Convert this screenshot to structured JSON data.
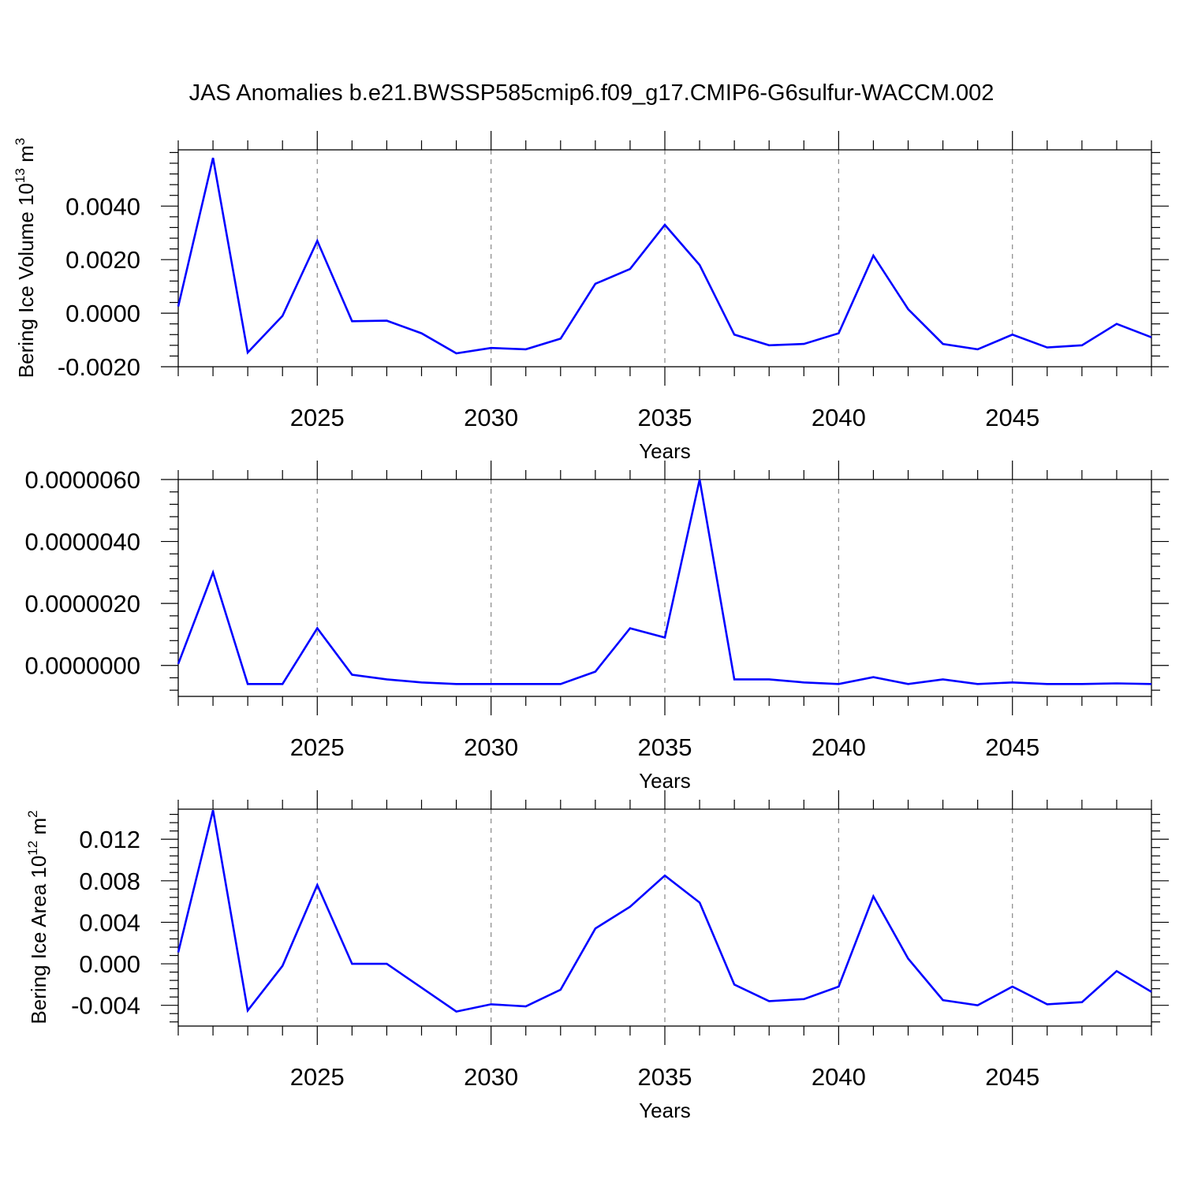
{
  "title": "JAS Anomalies b.e21.BWSSP585cmip6.f09_g17.CMIP6-G6sulfur-WACCM.002",
  "chart_data": [
    {
      "type": "line",
      "xlabel": "Years",
      "ylabel_main": "Bering Ice Volume 10",
      "ylabel_exp": "13",
      "ylabel_unit": " m",
      "ylabel_unit_exp": "3",
      "xlim": [
        2021,
        2049
      ],
      "ylim": [
        -0.002,
        0.0061
      ],
      "xticks": [
        "2025",
        "2030",
        "2035",
        "2040",
        "2045"
      ],
      "yticks": [
        "0.0040",
        "0.0020",
        "0.0000",
        "-0.0020"
      ],
      "ytick_values": [
        0.004,
        0.002,
        0.0,
        -0.002
      ],
      "color": "#0000ff",
      "x": [
        2021,
        2022,
        2023,
        2024,
        2025,
        2026,
        2027,
        2028,
        2029,
        2030,
        2031,
        2032,
        2033,
        2034,
        2035,
        2036,
        2037,
        2038,
        2039,
        2040,
        2041,
        2042,
        2043,
        2044,
        2045,
        2046,
        2047,
        2048,
        2049
      ],
      "values": [
        0.00025,
        0.0058,
        -0.00147,
        -0.0001,
        0.0027,
        -0.0003,
        -0.00028,
        -0.00075,
        -0.0015,
        -0.0013,
        -0.00135,
        -0.00095,
        0.0011,
        0.00165,
        0.0033,
        0.0018,
        -0.0008,
        -0.0012,
        -0.00115,
        -0.00075,
        0.00215,
        0.00015,
        -0.00115,
        -0.00135,
        -0.0008,
        -0.00128,
        -0.0012,
        -0.0004,
        -0.0009
      ]
    },
    {
      "type": "line",
      "xlabel": "Years",
      "xlim": [
        2021,
        2049
      ],
      "ylim": [
        -1e-06,
        6e-06
      ],
      "xticks": [
        "2025",
        "2030",
        "2035",
        "2040",
        "2045"
      ],
      "yticks": [
        "0.0000060",
        "0.0000040",
        "0.0000020",
        "0.0000000"
      ],
      "ytick_values": [
        6e-06,
        4e-06,
        2e-06,
        0.0
      ],
      "color": "#0000ff",
      "x": [
        2021,
        2022,
        2023,
        2024,
        2025,
        2026,
        2027,
        2028,
        2029,
        2030,
        2031,
        2032,
        2033,
        2034,
        2035,
        2036,
        2037,
        2038,
        2039,
        2040,
        2041,
        2042,
        2043,
        2044,
        2045,
        2046,
        2047,
        2048,
        2049
      ],
      "values": [
        5e-08,
        3e-06,
        -6e-07,
        -6e-07,
        1.2e-06,
        -3e-07,
        -4.5e-07,
        -5.5e-07,
        -6e-07,
        -6e-07,
        -6e-07,
        -6e-07,
        -2e-07,
        1.2e-06,
        9e-07,
        6e-06,
        -4.5e-07,
        -4.5e-07,
        -5.5e-07,
        -6e-07,
        -3.8e-07,
        -6e-07,
        -4.5e-07,
        -6e-07,
        -5.5e-07,
        -6e-07,
        -6e-07,
        -5.8e-07,
        -6e-07
      ]
    },
    {
      "type": "line",
      "xlabel": "Years",
      "ylabel_main": "Bering Ice Area 10",
      "ylabel_exp": "12",
      "ylabel_unit": " m",
      "ylabel_unit_exp": "2",
      "xlim": [
        2021,
        2049
      ],
      "ylim": [
        -0.006,
        0.0149
      ],
      "xticks": [
        "2025",
        "2030",
        "2035",
        "2040",
        "2045"
      ],
      "yticks": [
        "0.012",
        "0.008",
        "0.004",
        "0.000",
        "-0.004"
      ],
      "ytick_values": [
        0.012,
        0.008,
        0.004,
        0.0,
        -0.004
      ],
      "color": "#0000ff",
      "x": [
        2021,
        2022,
        2023,
        2024,
        2025,
        2026,
        2027,
        2028,
        2029,
        2030,
        2031,
        2032,
        2033,
        2034,
        2035,
        2036,
        2037,
        2038,
        2039,
        2040,
        2041,
        2042,
        2043,
        2044,
        2045,
        2046,
        2047,
        2048,
        2049
      ],
      "values": [
        0.0011,
        0.0148,
        -0.0045,
        -0.0002,
        0.0076,
        0.0,
        0.0,
        -0.0023,
        -0.0046,
        -0.0039,
        -0.0041,
        -0.0025,
        0.0034,
        0.0055,
        0.0085,
        0.0059,
        -0.002,
        -0.0036,
        -0.0034,
        -0.0022,
        0.0065,
        0.0005,
        -0.0035,
        -0.004,
        -0.0022,
        -0.0039,
        -0.0037,
        -0.0007,
        -0.0027
      ]
    }
  ]
}
